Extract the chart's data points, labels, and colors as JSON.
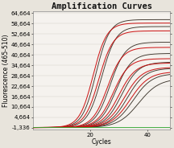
{
  "title": "Amplification Curves",
  "xlabel": "Cycles",
  "ylabel": "Fluorescence (465-510)",
  "xlim": [
    0,
    48
  ],
  "ylim": [
    -2500,
    66000
  ],
  "yticks": [
    -1336,
    4664,
    10664,
    16664,
    22664,
    28664,
    34664,
    40664,
    46664,
    52664,
    58664,
    64664
  ],
  "ytick_labels": [
    "-1,336",
    "4,664",
    "10,664",
    "16,664",
    "22,664",
    "28,664",
    "34,664",
    "40,664",
    "46,664",
    "52,664",
    "58,664",
    "64,664"
  ],
  "xticks": [
    20,
    40
  ],
  "background_color": "#e8e4dc",
  "plot_bg_color": "#f5f2ee",
  "title_fontsize": 7.5,
  "axis_fontsize": 5.5,
  "tick_fontsize": 5,
  "dark_curves": {
    "color": "#2a2218",
    "plateaus": [
      61000,
      57000,
      48000,
      41500,
      36500,
      33000,
      30000,
      27000
    ],
    "midpoints": [
      22,
      24,
      27,
      29,
      31,
      33,
      35,
      37
    ],
    "steepness": [
      0.42,
      0.4,
      0.38,
      0.36,
      0.34,
      0.32,
      0.3,
      0.28
    ]
  },
  "red_curves": {
    "color": "#cc1111",
    "plateaus": [
      59000,
      54500,
      45000,
      38500,
      36000,
      33500,
      31000
    ],
    "midpoints": [
      21,
      23,
      26,
      28,
      30,
      32,
      34
    ],
    "steepness": [
      0.42,
      0.4,
      0.38,
      0.36,
      0.34,
      0.32,
      0.3
    ]
  },
  "green_line": {
    "color": "#33aa33",
    "value": -900
  },
  "grid_color": "#d0ccc4"
}
